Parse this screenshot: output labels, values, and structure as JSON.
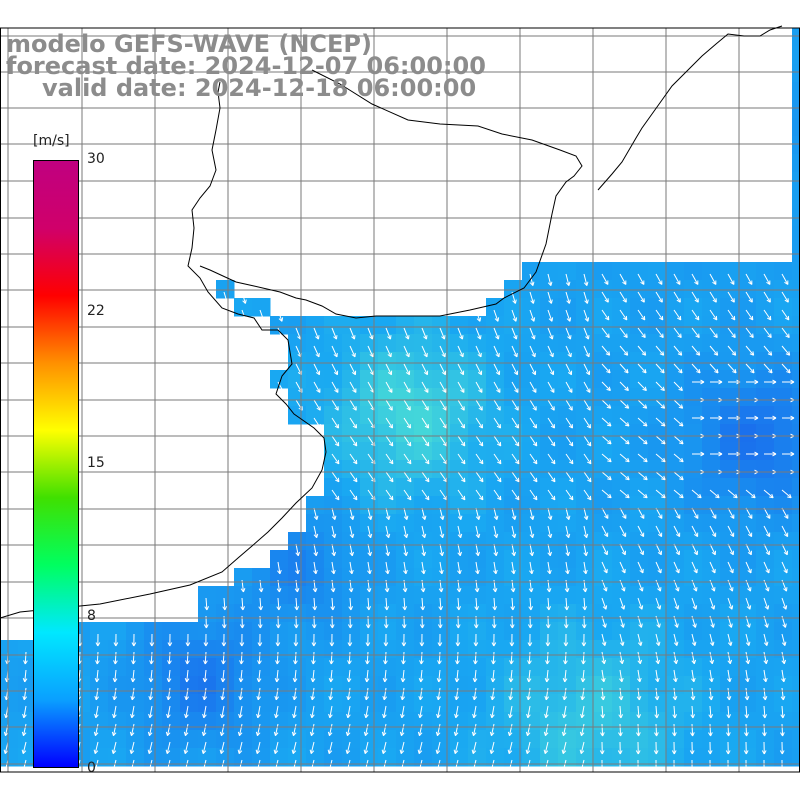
{
  "titles": {
    "model": "modelo GEFS-WAVE (NCEP)",
    "forecast": "forecast date: 2024-12-07 06:00:00",
    "valid": "valid date: 2024-12-18 06:00:00"
  },
  "colorbar": {
    "unit": "[m/s]",
    "ticks": [
      "30",
      "22",
      "15",
      "8",
      "0"
    ],
    "stops": [
      "#0000ff",
      "#0aa0ff",
      "#00e8ff",
      "#00ff60",
      "#40e000",
      "#ffff00",
      "#ff9000",
      "#ff0000",
      "#d0006a",
      "#c00080"
    ]
  },
  "colors": {
    "land": "#ffffff",
    "grid": "#7a7a7a",
    "coast": "#000000",
    "arrows": "#ffffff",
    "ocean_low": "#1a6ef0",
    "ocean_mid": "#19a8f2",
    "ocean_high": "#4fe0d0"
  }
}
